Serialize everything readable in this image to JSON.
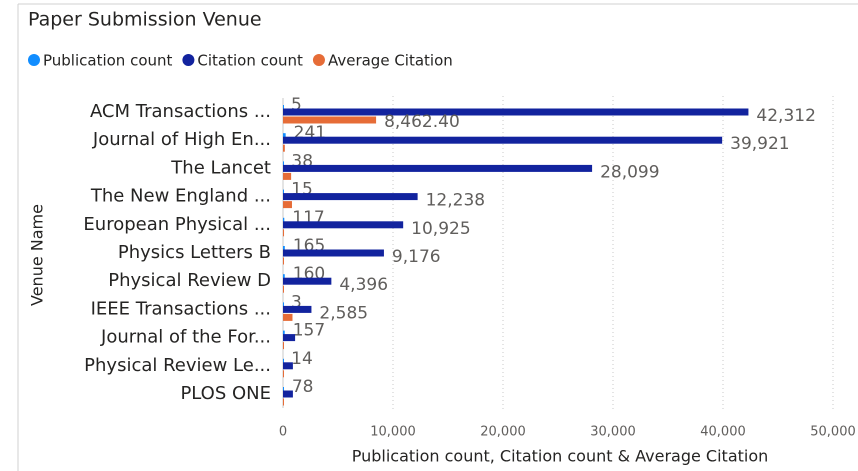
{
  "chart_data": {
    "type": "bar",
    "orientation": "horizontal",
    "title": "Paper Submission Venue",
    "x_label": "Publication count, Citation count & Average Citation",
    "y_label": "Venue Name",
    "categories": [
      "ACM Transactions ...",
      "Journal of High En...",
      "The Lancet",
      "The New England ...",
      "European Physical ...",
      "Physics Letters B",
      "Physical Review D",
      "IEEE Transactions ...",
      "Journal of the For...",
      "Physical Review Le...",
      "PLOS ONE"
    ],
    "series": [
      {
        "name": "Publication count",
        "color": "#118DFF",
        "values": [
          5,
          241,
          38,
          15,
          117,
          165,
          160,
          3,
          157,
          14,
          78
        ],
        "value_labels": [
          "5",
          "241",
          "38",
          "15",
          "117",
          "165",
          "160",
          "3",
          "157",
          "14",
          "78"
        ]
      },
      {
        "name": "Citation count",
        "color": "#12239E",
        "values": [
          42312,
          39921,
          28099,
          12238,
          10925,
          9176,
          4396,
          2585,
          1100,
          900,
          900
        ],
        "value_labels": [
          "42,312",
          "39,921",
          "28,099",
          "12,238",
          "10,925",
          "9,176",
          "4,396",
          "2,585",
          null,
          null,
          null
        ]
      },
      {
        "name": "Average Citation",
        "color": "#E66C37",
        "values": [
          8462.4,
          166,
          739,
          816,
          93,
          56,
          27,
          862,
          7,
          64,
          12
        ],
        "value_labels": [
          "8,462.40",
          null,
          null,
          null,
          null,
          null,
          null,
          null,
          null,
          null,
          null
        ]
      }
    ],
    "xlim": [
      0,
      50000
    ],
    "xticks": [
      0,
      {
        "value": 10000,
        "label": "10,000"
      },
      {
        "value": 20000,
        "label": "20,000"
      },
      {
        "value": 30000,
        "label": "30,000"
      },
      {
        "value": 40000,
        "label": "40,000"
      },
      {
        "value": 50000,
        "label": "50,000"
      }
    ],
    "grid": true,
    "legend": "top-left"
  }
}
